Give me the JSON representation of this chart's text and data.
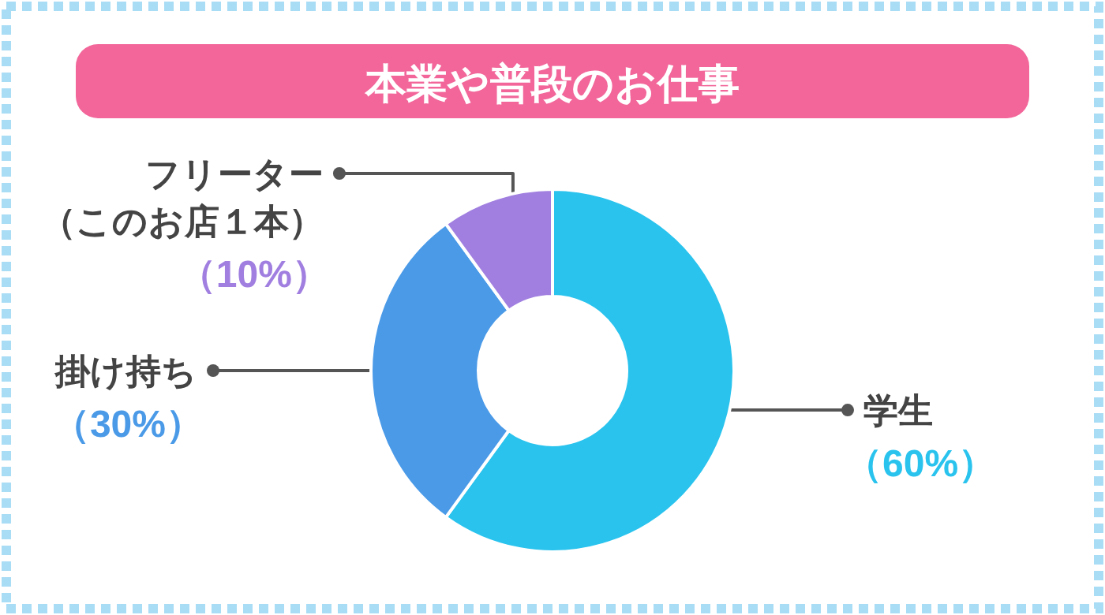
{
  "chart_data": {
    "type": "donut",
    "title": "本業や普段のお仕事",
    "categories": [
      "学生",
      "掛け持ち",
      "フリーター（このお店１本）"
    ],
    "values": [
      60,
      30,
      10
    ],
    "colors": [
      "#29c3ee",
      "#4a9ae8",
      "#a07fe0"
    ],
    "value_labels": [
      "（60%）",
      "（30%）",
      "（10%）"
    ]
  }
}
